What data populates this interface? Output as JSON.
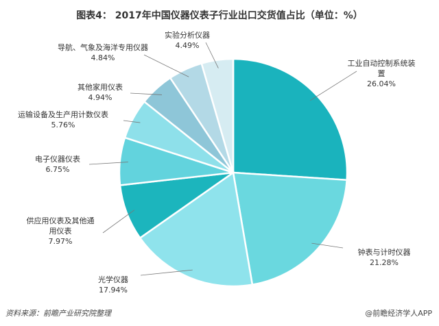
{
  "chart_data": {
    "type": "pie",
    "title": "图表4： 2017年中国仪器仪表子行业出口交货值占比（单位：%）",
    "start_angle": "12 o'clock",
    "direction": "clockwise",
    "slices": [
      {
        "label": [
          "工业自动控制系统装",
          "置"
        ],
        "value": 26.04,
        "display": "26.04%",
        "color": "#1ab3bd"
      },
      {
        "label": [
          "钟表与计时仪器"
        ],
        "value": 21.28,
        "display": "21.28%",
        "color": "#6ad8df"
      },
      {
        "label": [
          "光学仪器"
        ],
        "value": 17.94,
        "display": "17.94%",
        "color": "#8fe3ec"
      },
      {
        "label": [
          "供应用仪表及其他通",
          "用仪表"
        ],
        "value": 7.97,
        "display": "7.97%",
        "color": "#1cb5bd"
      },
      {
        "label": [
          "电子仪器仪表"
        ],
        "value": 6.75,
        "display": "6.75%",
        "color": "#62d3dd"
      },
      {
        "label": [
          "运输设备及生产用计数仪表"
        ],
        "value": 5.76,
        "display": "5.76%",
        "color": "#8ee0ea"
      },
      {
        "label": [
          "其他家用仪表"
        ],
        "value": 4.94,
        "display": "4.94%",
        "color": "#8ec6d8"
      },
      {
        "label": [
          "导航、气象及海洋专用仪器"
        ],
        "value": 4.84,
        "display": "4.84%",
        "color": "#b3d9e6"
      },
      {
        "label": [
          "实验分析仪器"
        ],
        "value": 4.49,
        "display": "4.49%",
        "color": "#d6ecf2"
      }
    ]
  },
  "footer": {
    "source": "资料来源：前瞻产业研究院整理",
    "credit": "@前瞻经济学人APP"
  }
}
